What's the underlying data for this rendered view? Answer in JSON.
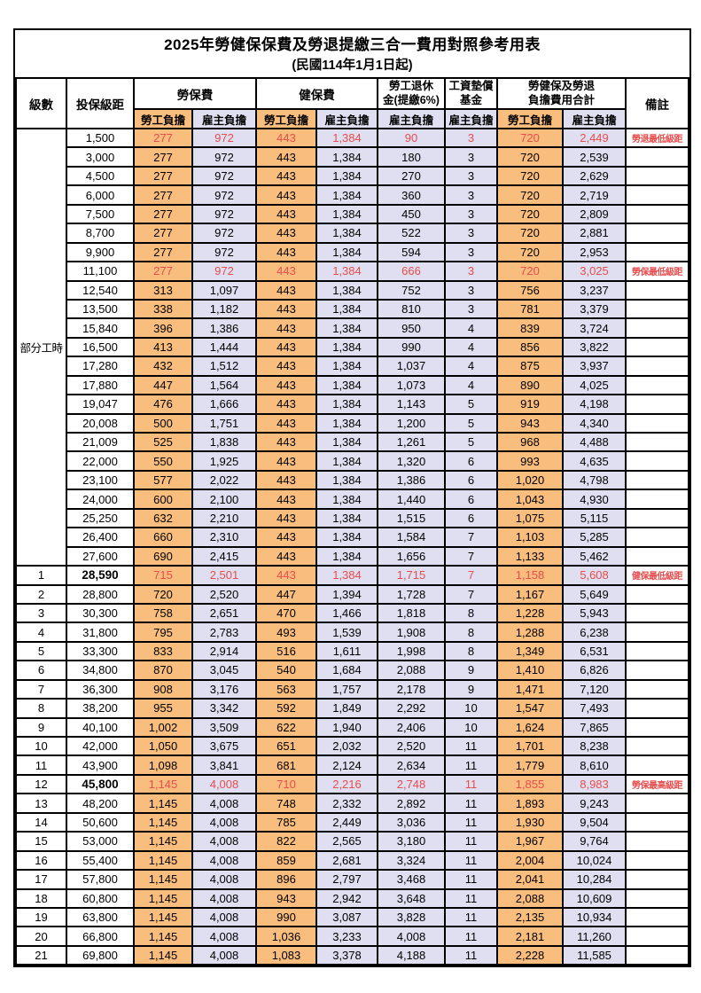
{
  "title": "2025年勞健保保費及勞退提繳三合一費用對照參考用表",
  "subtitle": "(民國114年1月1日起)",
  "colors": {
    "employee_column_bg": "#F9BE7E",
    "employer_column_bg": "#DFDFF1",
    "highlight_text": "#E84C4C",
    "grid_border": "#000000"
  },
  "header": {
    "level": "級數",
    "bracket": "投保級距",
    "labor_insurance": "勞保費",
    "health_insurance": "健保費",
    "pension_line1": "勞工退休",
    "pension_line2": "金(提繳6%)",
    "wage_fund_line1": "工資墊償",
    "wage_fund_line2": "基金",
    "total_line1": "勞健保及勞退",
    "total_line2": "負擔費用合計",
    "employee": "勞工負擔",
    "employer": "雇主負擔",
    "remark": "備註"
  },
  "table": {
    "part_time_label": "部分工時",
    "value_columns": [
      "labor-employee",
      "labor-employer",
      "health-employee",
      "health-employer",
      "pension-employer",
      "wagefund-employer",
      "total-employee",
      "total-employer"
    ],
    "rows": [
      {
        "level": "",
        "bracket": "1,500",
        "v": [
          "277",
          "972",
          "443",
          "1,384",
          "90",
          "3",
          "720",
          "2,449"
        ],
        "remark": "勞退最低級距",
        "hl": true,
        "bold": false
      },
      {
        "level": "",
        "bracket": "3,000",
        "v": [
          "277",
          "972",
          "443",
          "1,384",
          "180",
          "3",
          "720",
          "2,539"
        ],
        "remark": "",
        "hl": false,
        "bold": false
      },
      {
        "level": "",
        "bracket": "4,500",
        "v": [
          "277",
          "972",
          "443",
          "1,384",
          "270",
          "3",
          "720",
          "2,629"
        ],
        "remark": "",
        "hl": false,
        "bold": false
      },
      {
        "level": "",
        "bracket": "6,000",
        "v": [
          "277",
          "972",
          "443",
          "1,384",
          "360",
          "3",
          "720",
          "2,719"
        ],
        "remark": "",
        "hl": false,
        "bold": false
      },
      {
        "level": "",
        "bracket": "7,500",
        "v": [
          "277",
          "972",
          "443",
          "1,384",
          "450",
          "3",
          "720",
          "2,809"
        ],
        "remark": "",
        "hl": false,
        "bold": false
      },
      {
        "level": "",
        "bracket": "8,700",
        "v": [
          "277",
          "972",
          "443",
          "1,384",
          "522",
          "3",
          "720",
          "2,881"
        ],
        "remark": "",
        "hl": false,
        "bold": false
      },
      {
        "level": "",
        "bracket": "9,900",
        "v": [
          "277",
          "972",
          "443",
          "1,384",
          "594",
          "3",
          "720",
          "2,953"
        ],
        "remark": "",
        "hl": false,
        "bold": false
      },
      {
        "level": "",
        "bracket": "11,100",
        "v": [
          "277",
          "972",
          "443",
          "1,384",
          "666",
          "3",
          "720",
          "3,025"
        ],
        "remark": "勞保最低級距",
        "hl": true,
        "bold": false
      },
      {
        "level": "",
        "bracket": "12,540",
        "v": [
          "313",
          "1,097",
          "443",
          "1,384",
          "752",
          "3",
          "756",
          "3,237"
        ],
        "remark": "",
        "hl": false,
        "bold": false
      },
      {
        "level": "",
        "bracket": "13,500",
        "v": [
          "338",
          "1,182",
          "443",
          "1,384",
          "810",
          "3",
          "781",
          "3,379"
        ],
        "remark": "",
        "hl": false,
        "bold": false
      },
      {
        "level": "",
        "bracket": "15,840",
        "v": [
          "396",
          "1,386",
          "443",
          "1,384",
          "950",
          "4",
          "839",
          "3,724"
        ],
        "remark": "",
        "hl": false,
        "bold": false
      },
      {
        "level": "",
        "bracket": "16,500",
        "v": [
          "413",
          "1,444",
          "443",
          "1,384",
          "990",
          "4",
          "856",
          "3,822"
        ],
        "remark": "",
        "hl": false,
        "bold": false
      },
      {
        "level": "",
        "bracket": "17,280",
        "v": [
          "432",
          "1,512",
          "443",
          "1,384",
          "1,037",
          "4",
          "875",
          "3,937"
        ],
        "remark": "",
        "hl": false,
        "bold": false
      },
      {
        "level": "",
        "bracket": "17,880",
        "v": [
          "447",
          "1,564",
          "443",
          "1,384",
          "1,073",
          "4",
          "890",
          "4,025"
        ],
        "remark": "",
        "hl": false,
        "bold": false
      },
      {
        "level": "",
        "bracket": "19,047",
        "v": [
          "476",
          "1,666",
          "443",
          "1,384",
          "1,143",
          "5",
          "919",
          "4,198"
        ],
        "remark": "",
        "hl": false,
        "bold": false
      },
      {
        "level": "",
        "bracket": "20,008",
        "v": [
          "500",
          "1,751",
          "443",
          "1,384",
          "1,200",
          "5",
          "943",
          "4,340"
        ],
        "remark": "",
        "hl": false,
        "bold": false
      },
      {
        "level": "",
        "bracket": "21,009",
        "v": [
          "525",
          "1,838",
          "443",
          "1,384",
          "1,261",
          "5",
          "968",
          "4,488"
        ],
        "remark": "",
        "hl": false,
        "bold": false
      },
      {
        "level": "",
        "bracket": "22,000",
        "v": [
          "550",
          "1,925",
          "443",
          "1,384",
          "1,320",
          "6",
          "993",
          "4,635"
        ],
        "remark": "",
        "hl": false,
        "bold": false
      },
      {
        "level": "",
        "bracket": "23,100",
        "v": [
          "577",
          "2,022",
          "443",
          "1,384",
          "1,386",
          "6",
          "1,020",
          "4,798"
        ],
        "remark": "",
        "hl": false,
        "bold": false
      },
      {
        "level": "",
        "bracket": "24,000",
        "v": [
          "600",
          "2,100",
          "443",
          "1,384",
          "1,440",
          "6",
          "1,043",
          "4,930"
        ],
        "remark": "",
        "hl": false,
        "bold": false
      },
      {
        "level": "",
        "bracket": "25,250",
        "v": [
          "632",
          "2,210",
          "443",
          "1,384",
          "1,515",
          "6",
          "1,075",
          "5,115"
        ],
        "remark": "",
        "hl": false,
        "bold": false
      },
      {
        "level": "",
        "bracket": "26,400",
        "v": [
          "660",
          "2,310",
          "443",
          "1,384",
          "1,584",
          "7",
          "1,103",
          "5,285"
        ],
        "remark": "",
        "hl": false,
        "bold": false
      },
      {
        "level": "",
        "bracket": "27,600",
        "v": [
          "690",
          "2,415",
          "443",
          "1,384",
          "1,656",
          "7",
          "1,133",
          "5,462"
        ],
        "remark": "",
        "hl": false,
        "bold": false
      },
      {
        "level": "1",
        "bracket": "28,590",
        "v": [
          "715",
          "2,501",
          "443",
          "1,384",
          "1,715",
          "7",
          "1,158",
          "5,608"
        ],
        "remark": "健保最低級距",
        "hl": true,
        "bold": true
      },
      {
        "level": "2",
        "bracket": "28,800",
        "v": [
          "720",
          "2,520",
          "447",
          "1,394",
          "1,728",
          "7",
          "1,167",
          "5,649"
        ],
        "remark": "",
        "hl": false,
        "bold": false
      },
      {
        "level": "3",
        "bracket": "30,300",
        "v": [
          "758",
          "2,651",
          "470",
          "1,466",
          "1,818",
          "8",
          "1,228",
          "5,943"
        ],
        "remark": "",
        "hl": false,
        "bold": false
      },
      {
        "level": "4",
        "bracket": "31,800",
        "v": [
          "795",
          "2,783",
          "493",
          "1,539",
          "1,908",
          "8",
          "1,288",
          "6,238"
        ],
        "remark": "",
        "hl": false,
        "bold": false
      },
      {
        "level": "5",
        "bracket": "33,300",
        "v": [
          "833",
          "2,914",
          "516",
          "1,611",
          "1,998",
          "8",
          "1,349",
          "6,531"
        ],
        "remark": "",
        "hl": false,
        "bold": false
      },
      {
        "level": "6",
        "bracket": "34,800",
        "v": [
          "870",
          "3,045",
          "540",
          "1,684",
          "2,088",
          "9",
          "1,410",
          "6,826"
        ],
        "remark": "",
        "hl": false,
        "bold": false
      },
      {
        "level": "7",
        "bracket": "36,300",
        "v": [
          "908",
          "3,176",
          "563",
          "1,757",
          "2,178",
          "9",
          "1,471",
          "7,120"
        ],
        "remark": "",
        "hl": false,
        "bold": false
      },
      {
        "level": "8",
        "bracket": "38,200",
        "v": [
          "955",
          "3,342",
          "592",
          "1,849",
          "2,292",
          "10",
          "1,547",
          "7,493"
        ],
        "remark": "",
        "hl": false,
        "bold": false
      },
      {
        "level": "9",
        "bracket": "40,100",
        "v": [
          "1,002",
          "3,509",
          "622",
          "1,940",
          "2,406",
          "10",
          "1,624",
          "7,865"
        ],
        "remark": "",
        "hl": false,
        "bold": false
      },
      {
        "level": "10",
        "bracket": "42,000",
        "v": [
          "1,050",
          "3,675",
          "651",
          "2,032",
          "2,520",
          "11",
          "1,701",
          "8,238"
        ],
        "remark": "",
        "hl": false,
        "bold": false
      },
      {
        "level": "11",
        "bracket": "43,900",
        "v": [
          "1,098",
          "3,841",
          "681",
          "2,124",
          "2,634",
          "11",
          "1,779",
          "8,610"
        ],
        "remark": "",
        "hl": false,
        "bold": false
      },
      {
        "level": "12",
        "bracket": "45,800",
        "v": [
          "1,145",
          "4,008",
          "710",
          "2,216",
          "2,748",
          "11",
          "1,855",
          "8,983"
        ],
        "remark": "勞保最高級距",
        "hl": true,
        "bold": true
      },
      {
        "level": "13",
        "bracket": "48,200",
        "v": [
          "1,145",
          "4,008",
          "748",
          "2,332",
          "2,892",
          "11",
          "1,893",
          "9,243"
        ],
        "remark": "",
        "hl": false,
        "bold": false
      },
      {
        "level": "14",
        "bracket": "50,600",
        "v": [
          "1,145",
          "4,008",
          "785",
          "2,449",
          "3,036",
          "11",
          "1,930",
          "9,504"
        ],
        "remark": "",
        "hl": false,
        "bold": false
      },
      {
        "level": "15",
        "bracket": "53,000",
        "v": [
          "1,145",
          "4,008",
          "822",
          "2,565",
          "3,180",
          "11",
          "1,967",
          "9,764"
        ],
        "remark": "",
        "hl": false,
        "bold": false
      },
      {
        "level": "16",
        "bracket": "55,400",
        "v": [
          "1,145",
          "4,008",
          "859",
          "2,681",
          "3,324",
          "11",
          "2,004",
          "10,024"
        ],
        "remark": "",
        "hl": false,
        "bold": false
      },
      {
        "level": "17",
        "bracket": "57,800",
        "v": [
          "1,145",
          "4,008",
          "896",
          "2,797",
          "3,468",
          "11",
          "2,041",
          "10,284"
        ],
        "remark": "",
        "hl": false,
        "bold": false
      },
      {
        "level": "18",
        "bracket": "60,800",
        "v": [
          "1,145",
          "4,008",
          "943",
          "2,942",
          "3,648",
          "11",
          "2,088",
          "10,609"
        ],
        "remark": "",
        "hl": false,
        "bold": false
      },
      {
        "level": "19",
        "bracket": "63,800",
        "v": [
          "1,145",
          "4,008",
          "990",
          "3,087",
          "3,828",
          "11",
          "2,135",
          "10,934"
        ],
        "remark": "",
        "hl": false,
        "bold": false
      },
      {
        "level": "20",
        "bracket": "66,800",
        "v": [
          "1,145",
          "4,008",
          "1,036",
          "3,233",
          "4,008",
          "11",
          "2,181",
          "11,260"
        ],
        "remark": "",
        "hl": false,
        "bold": false
      },
      {
        "level": "21",
        "bracket": "69,800",
        "v": [
          "1,145",
          "4,008",
          "1,083",
          "3,378",
          "4,188",
          "11",
          "2,228",
          "11,585"
        ],
        "remark": "",
        "hl": false,
        "bold": false
      }
    ]
  }
}
